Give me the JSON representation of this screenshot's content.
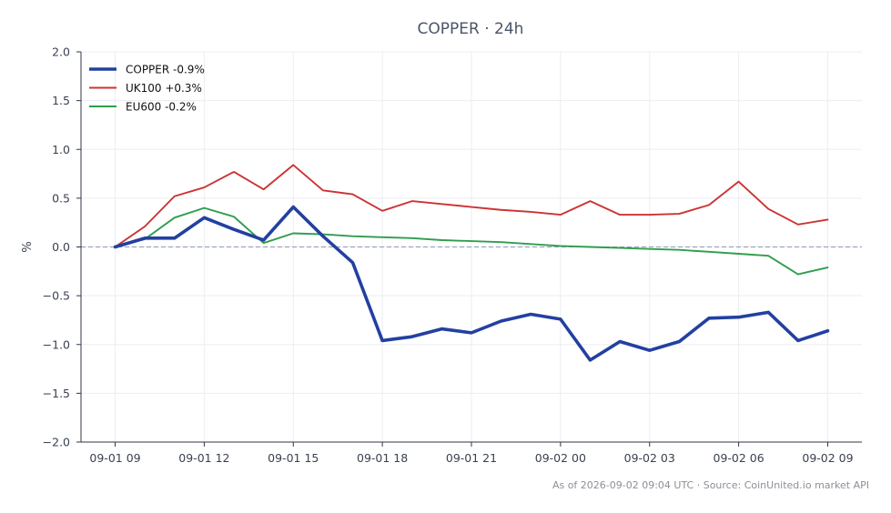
{
  "chart_data": {
    "type": "line",
    "title": "COPPER · 24h",
    "xlabel": "",
    "ylabel": "%",
    "ylim": [
      -2.0,
      2.0
    ],
    "y_ticks": [
      "2.0",
      "1.5",
      "1.0",
      "0.5",
      "0.0",
      "−0.5",
      "−1.0",
      "−1.5",
      "−2.0"
    ],
    "y_tick_values": [
      2.0,
      1.5,
      1.0,
      0.5,
      0.0,
      -0.5,
      -1.0,
      -1.5,
      -2.0
    ],
    "x_ticks": [
      "09-01 09",
      "09-01 12",
      "09-01 15",
      "09-01 18",
      "09-01 21",
      "09-02 00",
      "09-02 03",
      "09-02 06",
      "09-02 09"
    ],
    "x_tick_values": [
      0,
      3,
      6,
      9,
      12,
      15,
      18,
      21,
      24
    ],
    "xlim": [
      -1.15,
      25.15
    ],
    "grid": true,
    "legend_position": "top-left",
    "baseline": 0,
    "series": [
      {
        "name": "COPPER -0.9%",
        "color": "#2340a0",
        "emphasis": true,
        "x": [
          0,
          1,
          2,
          3,
          4,
          5,
          6,
          7,
          8,
          9,
          10,
          11,
          12,
          13,
          14,
          15,
          16,
          17,
          18,
          19,
          20,
          21,
          22,
          23,
          24
        ],
        "values": [
          0.0,
          0.09,
          0.09,
          0.3,
          0.18,
          0.07,
          0.41,
          0.11,
          -0.16,
          -0.96,
          -0.92,
          -0.84,
          -0.88,
          -0.76,
          -0.69,
          -0.74,
          -1.16,
          -0.97,
          -1.06,
          -0.97,
          -0.73,
          -0.72,
          -0.67,
          -0.96,
          -0.86
        ]
      },
      {
        "name": "UK100 +0.3%",
        "color": "#cc3333",
        "emphasis": false,
        "x": [
          0,
          1,
          2,
          3,
          4,
          5,
          6,
          7,
          8,
          9,
          10,
          11,
          12,
          13,
          14,
          15,
          16,
          17,
          18,
          19,
          20,
          21,
          22,
          23,
          24
        ],
        "values": [
          0.0,
          0.21,
          0.52,
          0.61,
          0.77,
          0.59,
          0.84,
          0.58,
          0.54,
          0.37,
          0.47,
          0.44,
          0.41,
          0.38,
          0.36,
          0.33,
          0.47,
          0.33,
          0.33,
          0.34,
          0.43,
          0.67,
          0.39,
          0.23,
          0.28
        ]
      },
      {
        "name": "EU600 -0.2%",
        "color": "#2e9e4e",
        "emphasis": false,
        "x": [
          0,
          1,
          2,
          3,
          4,
          5,
          6,
          7,
          8,
          9,
          10,
          11,
          12,
          13,
          14,
          15,
          16,
          17,
          18,
          19,
          20,
          21,
          22,
          23,
          24
        ],
        "values": [
          0.0,
          0.08,
          0.3,
          0.4,
          0.31,
          0.04,
          0.14,
          0.13,
          0.11,
          0.1,
          0.09,
          0.07,
          0.06,
          0.05,
          0.03,
          0.01,
          0.0,
          -0.01,
          -0.02,
          -0.03,
          -0.05,
          -0.07,
          -0.09,
          -0.28,
          -0.21
        ]
      }
    ]
  },
  "footer": {
    "text": "As of 2026-09-02 09:04 UTC · Source: CoinUnited.io market API"
  }
}
